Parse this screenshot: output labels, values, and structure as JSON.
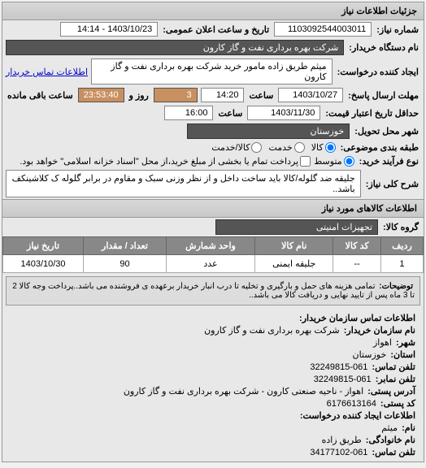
{
  "panel": {
    "title": "جزئیات اطلاعات نیاز"
  },
  "fields": {
    "niaz_no_label": "شماره نیاز:",
    "niaz_no": "1103092544003011",
    "announce_label": "تاریخ و ساعت اعلان عمومی:",
    "announce": "1403/10/23 - 14:14",
    "buyer_org_label": "نام دستگاه خریدار:",
    "buyer_org": "شرکت بهره برداری نفت و گاز کارون",
    "creator_label": "ایجاد کننده درخواست:",
    "creator": "میثم طریق زاده مامور خرید شرکت بهره برداری نفت و گاز کارون",
    "contact_link": "اطلاعات تماس خریدار",
    "deadline_label": "مهلت ارسال پاسخ:",
    "deadline_to_label": "تا تاریخ:",
    "deadline_date": "1403/10/27",
    "time_label": "ساعت",
    "deadline_time": "14:20",
    "days_label": "روز و",
    "days_left": "3",
    "remain_time": "23:53:40",
    "remain_label": "ساعت باقی مانده",
    "min_valid_label": "حداقل تاریخ اعتبار قیمت:",
    "min_valid_to_label": "تا تاریخ:",
    "min_valid_date": "1403/11/30",
    "min_valid_time": "16:00",
    "delivery_city_label": "شهر محل تحویل:",
    "delivery_city": "خوزستان",
    "category_label": "طبقه بندی موضوعی:",
    "cat_kala": "کالا",
    "cat_khedmat": "خدمت",
    "cat_both": "کالا/خدمت",
    "process_label": "نوع فرآیند خرید:",
    "proc_low": "متوسط",
    "pay_note": "پرداخت تمام یا بخشی از مبلغ خرید،از محل \"اسناد خزانه اسلامی\" خواهد بود.",
    "desc_label": "شرح کلی نیاز:",
    "desc_text": "جلیقه ضد گلوله/کالا باید ساخت داخل و از نظر وزنی سبک و مقاوم در برابر گلوله ک کلاشینکف باشد.."
  },
  "items_section": {
    "title": "اطلاعات کالاهای مورد نیاز",
    "group_label": "گروه کالا:",
    "group_value": "تجهیزات امنیتی"
  },
  "table": {
    "headers": {
      "row": "ردیف",
      "code": "کد کالا",
      "name": "نام کالا",
      "unit": "واحد شمارش",
      "qty": "تعداد / مقدار",
      "date": "تاریخ نیاز"
    },
    "rows": [
      {
        "row": "1",
        "code": "--",
        "name": "جلیقه ایمنی",
        "unit": "عدد",
        "qty": "90",
        "date": "1403/10/30"
      }
    ]
  },
  "notes": {
    "label": "توضیحات:",
    "text": "تمامی هزینه های حمل و بارگیری و تخلیه تا درب انبار خریدار برعهده ی فروشنده می باشد..پرداخت وجه کالا 2 تا 3 ماه پس از تایید نهایی و دریافت کالا می باشد.."
  },
  "contact": {
    "title": "اطلاعات تماس سازمان خریدار:",
    "org_label": "نام سازمان خریدار:",
    "org": "شرکت بهره برداری نفت و گاز کارون",
    "city_label": "شهر:",
    "city": "اهواز",
    "province_label": "استان:",
    "province": "خوزستان",
    "phone_label": "تلفن تماس:",
    "phone": "061-32249815",
    "fax_label": "تلفن نمابر:",
    "fax": "061-32249815",
    "addr_label": "آدرس پستی:",
    "addr": "اهواز - ناحیه صنعتی کارون - شرکت بهره برداری نفت و گاز کارون",
    "post_label": "کد پستی:",
    "post": "6176613164",
    "creator_title": "اطلاعات ایجاد کننده درخواست:",
    "name_label": "نام:",
    "name": "میثم",
    "lname_label": "نام خانوادگی:",
    "lname": "طریق زاده",
    "cphone_label": "تلفن تماس:",
    "cphone": "061-34177102"
  }
}
